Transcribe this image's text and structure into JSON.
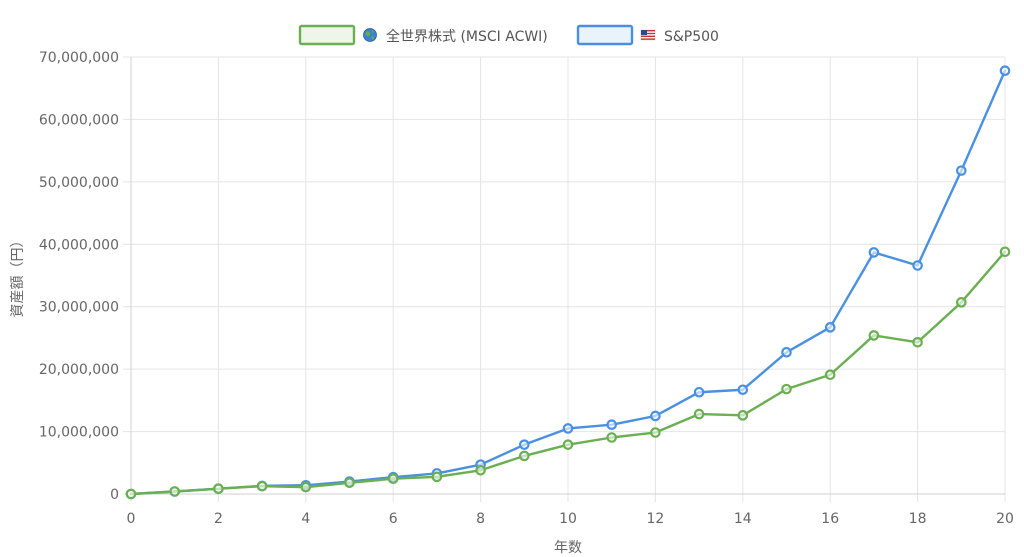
{
  "chart_data": {
    "type": "line",
    "x": [
      0,
      1,
      2,
      3,
      4,
      5,
      6,
      7,
      8,
      9,
      10,
      11,
      12,
      13,
      14,
      15,
      16,
      17,
      18,
      19,
      20
    ],
    "xlabel": "年数",
    "ylabel": "資産額（円）",
    "xlim": [
      0,
      20
    ],
    "ylim": [
      0,
      70000000
    ],
    "x_ticks": [
      "0",
      "2",
      "4",
      "6",
      "8",
      "10",
      "12",
      "14",
      "16",
      "18",
      "20"
    ],
    "y_ticks": [
      "0",
      "10,000,000",
      "20,000,000",
      "30,000,000",
      "40,000,000",
      "50,000,000",
      "60,000,000",
      "70,000,000"
    ],
    "grid": true,
    "legend_position": "top",
    "series": [
      {
        "name": "全世界株式 (MSCI ACWI)",
        "legend_icon": "globe-icon",
        "color": "#6aaf52",
        "values": [
          0,
          400000,
          850000,
          1250000,
          1100000,
          1800000,
          2450000,
          2750000,
          3800000,
          6100000,
          7900000,
          9050000,
          9850000,
          12800000,
          12600000,
          16800000,
          19100000,
          25400000,
          24300000,
          30700000,
          38800000
        ]
      },
      {
        "name": "S&P500",
        "legend_icon": "us-flag-icon",
        "color": "#4a90e2",
        "values": [
          0,
          400000,
          850000,
          1300000,
          1400000,
          2000000,
          2700000,
          3300000,
          4700000,
          7900000,
          10500000,
          11100000,
          12500000,
          16300000,
          16700000,
          22700000,
          26700000,
          38700000,
          36600000,
          51800000,
          67800000
        ]
      }
    ]
  }
}
